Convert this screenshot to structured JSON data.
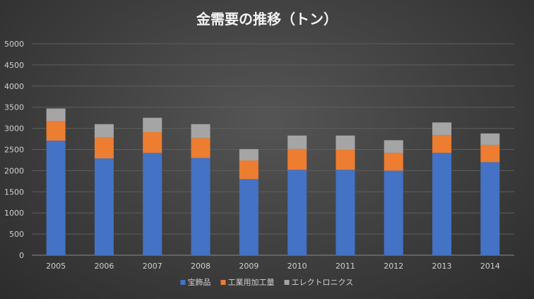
{
  "chart_data": {
    "type": "bar",
    "stacked": true,
    "title": "金需要の推移（トン）",
    "categories": [
      "2005",
      "2006",
      "2007",
      "2008",
      "2009",
      "2010",
      "2011",
      "2012",
      "2013",
      "2014"
    ],
    "series": [
      {
        "name": "宝飾品",
        "color": "#4472c4",
        "values": [
          2710,
          2290,
          2420,
          2300,
          1800,
          2020,
          2020,
          2000,
          2420,
          2200
        ]
      },
      {
        "name": "工業用加工量",
        "color": "#ed7d31",
        "values": [
          460,
          490,
          490,
          470,
          440,
          490,
          470,
          420,
          420,
          410
        ]
      },
      {
        "name": "エレクトロニクス",
        "color": "#a5a5a5",
        "values": [
          300,
          320,
          340,
          330,
          270,
          320,
          340,
          300,
          300,
          270
        ]
      }
    ],
    "ylim": [
      0,
      5000
    ],
    "yticks": [
      0,
      500,
      1000,
      1500,
      2000,
      2500,
      3000,
      3500,
      4000,
      4500,
      5000
    ],
    "grid": true,
    "legend": "bottom"
  }
}
